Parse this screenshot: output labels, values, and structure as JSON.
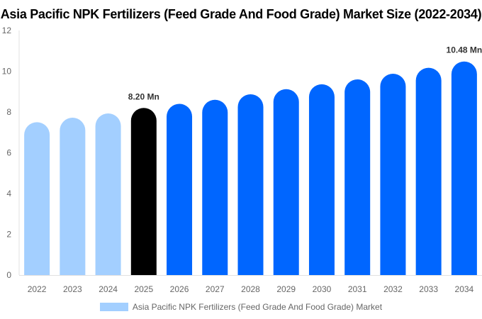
{
  "chart_data": {
    "type": "bar",
    "title": "Asia Pacific NPK Fertilizers (Feed Grade And Food Grade) Market Size (2022-2034)",
    "categories": [
      "2022",
      "2023",
      "2024",
      "2025",
      "2026",
      "2027",
      "2028",
      "2029",
      "2030",
      "2031",
      "2032",
      "2033",
      "2034"
    ],
    "series": [
      {
        "name": "Asia Pacific NPK Fertilizers (Feed Grade And Food Grade) Market",
        "values": [
          7.5,
          7.72,
          7.93,
          8.2,
          8.4,
          8.6,
          8.87,
          9.12,
          9.36,
          9.6,
          9.88,
          10.17,
          10.48
        ]
      }
    ],
    "colors": [
      "#a3cfff",
      "#a3cfff",
      "#a3cfff",
      "#000000",
      "#0066ff",
      "#0066ff",
      "#0066ff",
      "#0066ff",
      "#0066ff",
      "#0066ff",
      "#0066ff",
      "#0066ff",
      "#0066ff"
    ],
    "data_labels": {
      "3": "8.20 Mn",
      "12": "10.48 Mn"
    },
    "yticks": [
      0,
      2,
      4,
      6,
      8,
      10,
      12
    ],
    "ylim": [
      0,
      12
    ],
    "xlabel": "",
    "ylabel": "",
    "grid": false,
    "legend_position": "bottom"
  }
}
